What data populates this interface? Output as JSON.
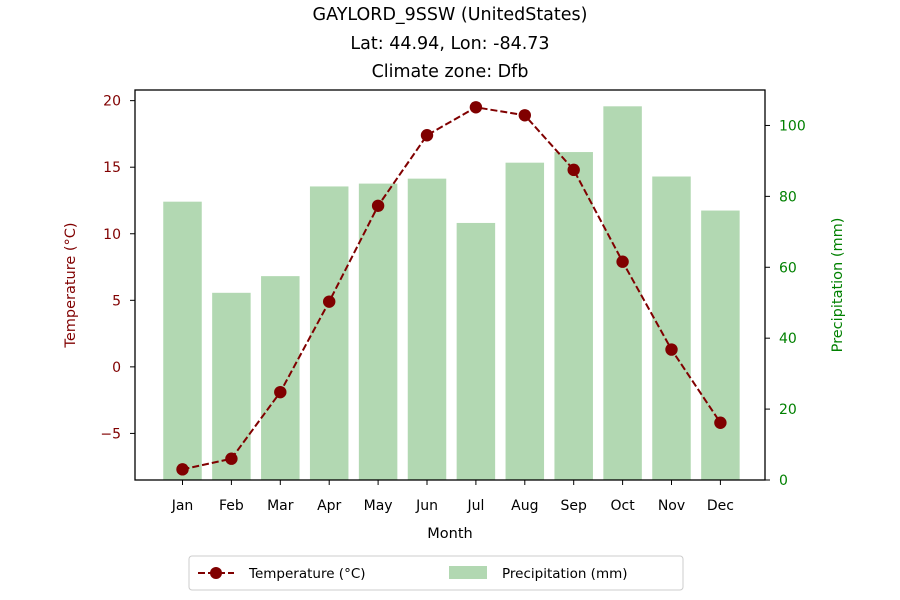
{
  "chart_data": {
    "type": "bar+line",
    "title_lines": [
      "GAYLORD_9SSW (UnitedStates)",
      "Lat: 44.94, Lon: -84.73",
      "Climate zone: Dfb"
    ],
    "xlabel": "Month",
    "ylabel_left": "Temperature (°C)",
    "ylabel_right": "Precipitation (mm)",
    "categories": [
      "Jan",
      "Feb",
      "Mar",
      "Apr",
      "May",
      "Jun",
      "Jul",
      "Aug",
      "Sep",
      "Oct",
      "Nov",
      "Dec"
    ],
    "temperature": {
      "name": "Temperature (°C)",
      "values": [
        -7.7,
        -6.9,
        -1.9,
        4.9,
        12.1,
        17.4,
        19.5,
        18.9,
        14.8,
        7.9,
        1.3,
        -4.2
      ],
      "color": "#800000"
    },
    "precipitation": {
      "name": "Precipitation (mm)",
      "values": [
        78.5,
        52.8,
        57.5,
        82.8,
        83.6,
        85.0,
        72.5,
        89.5,
        92.5,
        105.4,
        85.6,
        76.0
      ],
      "color": "#b2d8b2"
    },
    "ylim_left": [
      -8.5,
      20.8
    ],
    "ylim_right": [
      0,
      110
    ],
    "yticks_left": [
      -5,
      0,
      5,
      10,
      15,
      20
    ],
    "yticks_left_labels": [
      "−5",
      "0",
      "5",
      "10",
      "15",
      "20"
    ],
    "yticks_right": [
      0,
      20,
      40,
      60,
      80,
      100
    ],
    "left_axis_color": "#800000",
    "right_axis_color": "#008000",
    "legend_position": "bottom-center"
  }
}
